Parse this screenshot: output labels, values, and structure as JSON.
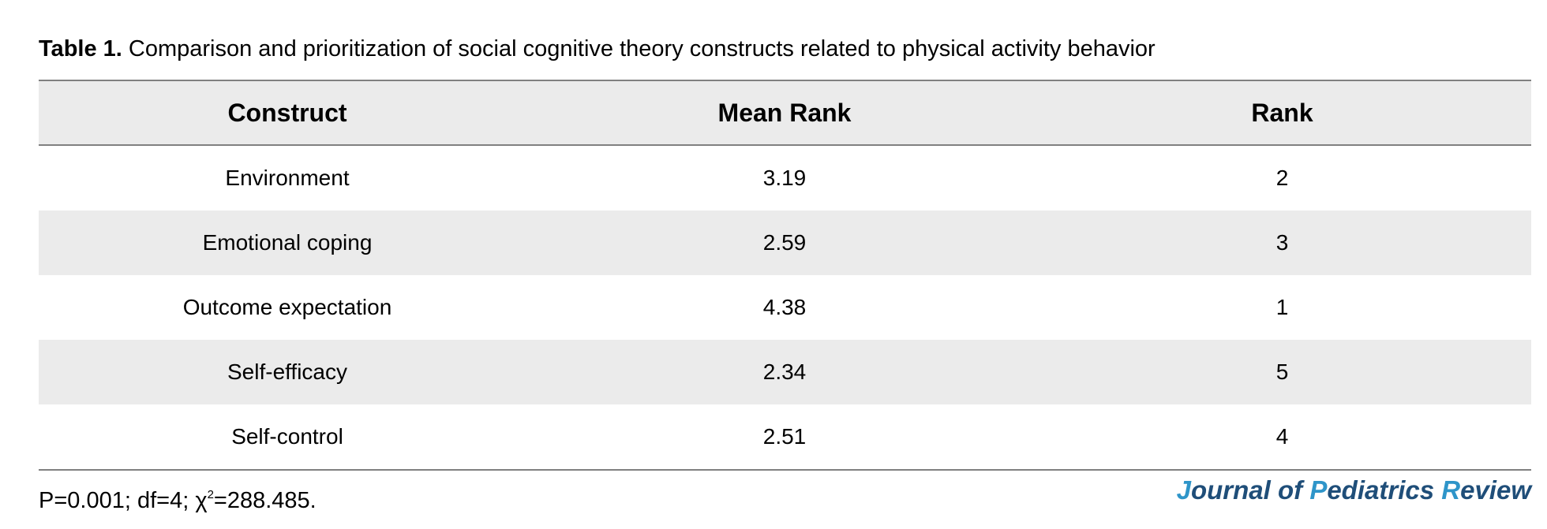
{
  "caption": {
    "label": "Table 1.",
    "text": "Comparison and prioritization of social cognitive theory constructs related to physical activity behavior"
  },
  "table": {
    "headers": [
      "Construct",
      "Mean Rank",
      "Rank"
    ],
    "rows": [
      [
        "Environment",
        "3.19",
        "2"
      ],
      [
        "Emotional coping",
        "2.59",
        "3"
      ],
      [
        "Outcome expectation",
        "4.38",
        "1"
      ],
      [
        "Self-efficacy",
        "2.34",
        "5"
      ],
      [
        "Self-control",
        "2.51",
        "4"
      ]
    ]
  },
  "footnote": {
    "pre": "P=0.001; df=4; χ",
    "sup": "2",
    "post": "=288.485."
  },
  "journal": {
    "j": "J",
    "ournal_of": "ournal of ",
    "p": "P",
    "ediatrics": "ediatrics ",
    "r": "R",
    "eview": "eview",
    "color_main": "#1f4e79",
    "color_accent": "#2e95c9"
  }
}
